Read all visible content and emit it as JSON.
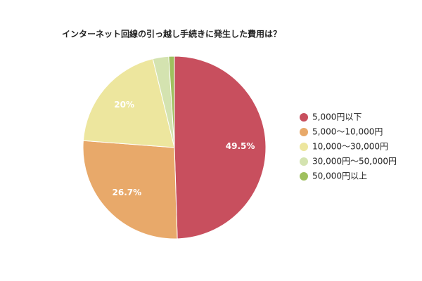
{
  "chart_data": {
    "type": "pie",
    "title": "インターネット回線の引っ越し手続きに発生した費用は？",
    "categories": [
      "5,000円以下",
      "5,000〜10,000円",
      "10,000〜30,000円",
      "30,000円〜50,000円",
      "50,000円以上"
    ],
    "values": [
      49.5,
      26.7,
      20,
      2.8,
      1.0
    ],
    "value_labels": [
      "49.5%",
      "26.7%",
      "20%",
      null,
      null
    ],
    "colors": [
      "#c84f5e",
      "#e8a96a",
      "#ede69e",
      "#d4e3b0",
      "#9fc05e"
    ],
    "legend": "right"
  }
}
